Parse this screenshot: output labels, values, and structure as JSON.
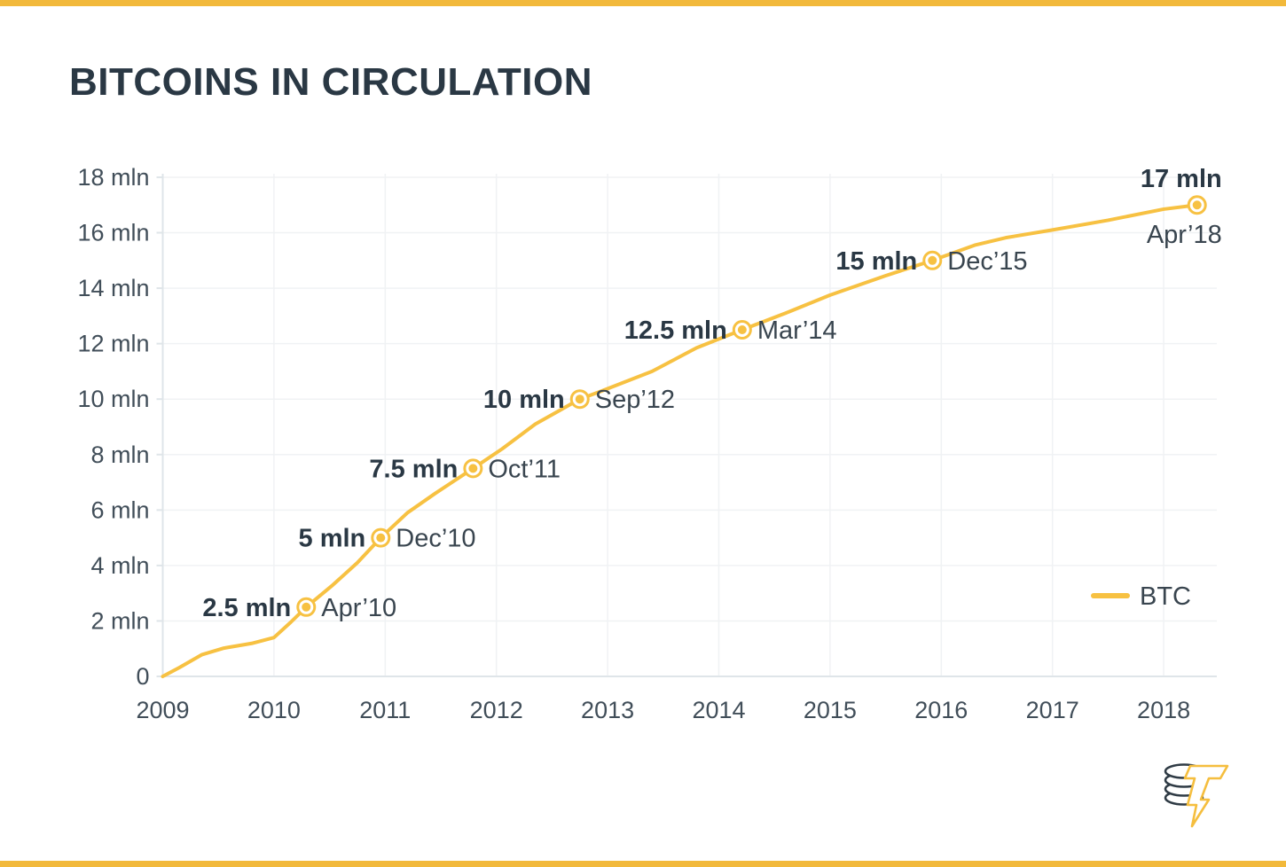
{
  "header": {
    "title": "BITCOINS IN CIRCULATION"
  },
  "branding": {
    "accent_bar_color": "#F2B93B",
    "logo_icon": "coin-stack-with-lightning-t"
  },
  "chart_data": {
    "type": "line",
    "title": "BITCOINS IN CIRCULATION",
    "grid": {
      "horizontal": true,
      "vertical": true,
      "color": "#F0F2F4"
    },
    "x_axis": {
      "tick_years": [
        2009,
        2010,
        2011,
        2012,
        2013,
        2014,
        2015,
        2016,
        2017,
        2018
      ],
      "range": [
        2009,
        2018.48
      ]
    },
    "y_axis": {
      "unit": "mln",
      "range": [
        0,
        18.2
      ],
      "ticks": [
        {
          "value": 0,
          "label": "0"
        },
        {
          "value": 2,
          "label": "2 mln"
        },
        {
          "value": 4,
          "label": "4 mln"
        },
        {
          "value": 6,
          "label": "6 mln"
        },
        {
          "value": 8,
          "label": "8 mln"
        },
        {
          "value": 10,
          "label": "10 mln"
        },
        {
          "value": 12,
          "label": "12 mln"
        },
        {
          "value": 14,
          "label": "14 mln"
        },
        {
          "value": 16,
          "label": "16 mln"
        },
        {
          "value": 18,
          "label": "18 mln"
        }
      ]
    },
    "series": [
      {
        "name": "BTC",
        "color": "#F7C142",
        "points_year_mln": [
          [
            2009.0,
            0
          ],
          [
            2009.15,
            0.32
          ],
          [
            2009.35,
            0.78
          ],
          [
            2009.55,
            1.02
          ],
          [
            2009.8,
            1.19
          ],
          [
            2010.0,
            1.4
          ],
          [
            2010.15,
            1.95
          ],
          [
            2010.29,
            2.5
          ],
          [
            2010.53,
            3.3
          ],
          [
            2010.75,
            4.1
          ],
          [
            2010.96,
            5.0
          ],
          [
            2011.2,
            5.9
          ],
          [
            2011.45,
            6.6
          ],
          [
            2011.79,
            7.5
          ],
          [
            2012.05,
            8.2
          ],
          [
            2012.35,
            9.1
          ],
          [
            2012.75,
            10.0
          ],
          [
            2012.95,
            10.3
          ],
          [
            2013.4,
            11.0
          ],
          [
            2013.8,
            11.85
          ],
          [
            2014.21,
            12.5
          ],
          [
            2014.6,
            13.1
          ],
          [
            2015.0,
            13.75
          ],
          [
            2015.5,
            14.45
          ],
          [
            2015.92,
            15.0
          ],
          [
            2016.3,
            15.55
          ],
          [
            2016.58,
            15.82
          ],
          [
            2017.0,
            16.1
          ],
          [
            2017.5,
            16.45
          ],
          [
            2018.0,
            16.85
          ],
          [
            2018.3,
            17.0
          ]
        ]
      }
    ],
    "milestones": [
      {
        "value": 2.5,
        "value_label": "2.5 mln",
        "date_label": "Apr’10",
        "year": 2010.29,
        "layout": "sides"
      },
      {
        "value": 5,
        "value_label": "5 mln",
        "date_label": "Dec’10",
        "year": 2010.96,
        "layout": "sides"
      },
      {
        "value": 7.5,
        "value_label": "7.5 mln",
        "date_label": "Oct’11",
        "year": 2011.79,
        "layout": "sides"
      },
      {
        "value": 10,
        "value_label": "10 mln",
        "date_label": "Sep’12",
        "year": 2012.75,
        "layout": "sides"
      },
      {
        "value": 12.5,
        "value_label": "12.5 mln",
        "date_label": "Mar’14",
        "year": 2014.21,
        "layout": "sides"
      },
      {
        "value": 15,
        "value_label": "15 mln",
        "date_label": "Dec’15",
        "year": 2015.92,
        "layout": "sides"
      },
      {
        "value": 17,
        "value_label": "17 mln",
        "date_label": "Apr’18",
        "year": 2018.3,
        "layout": "stacked"
      }
    ],
    "legend": {
      "label": "BTC",
      "position": "middle-right"
    },
    "colors": {
      "line": "#F7C142",
      "marker": "#F7C142",
      "value_text": "#2A3844",
      "date_text": "#39454F",
      "tick_text": "#414E59",
      "axis_line": "#DFE5E9"
    }
  }
}
